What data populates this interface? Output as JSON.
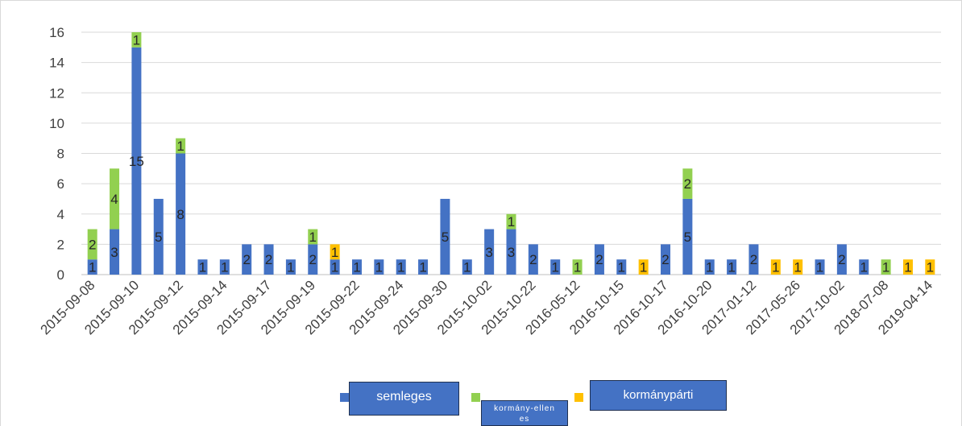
{
  "chart_data": {
    "type": "stacked_bar",
    "categories": [
      "2015-09-08",
      null,
      "2015-09-10",
      null,
      "2015-09-12",
      null,
      "2015-09-14",
      null,
      "2015-09-17",
      null,
      "2015-09-19",
      null,
      "2015-09-22",
      null,
      "2015-09-24",
      null,
      "2015-09-30",
      null,
      "2015-10-02",
      null,
      "2015-10-22",
      null,
      "2016-05-12",
      null,
      "2016-10-15",
      null,
      "2016-10-17",
      null,
      "2016-10-20",
      null,
      "2017-01-12",
      null,
      "2017-05-26",
      null,
      "2017-10-02",
      null,
      "2018-07-08",
      null,
      "2019-04-14"
    ],
    "series": [
      {
        "name": "semleges",
        "color": "#4472c4",
        "values": [
          1,
          3,
          15,
          5,
          8,
          1,
          1,
          2,
          2,
          1,
          2,
          1,
          1,
          1,
          1,
          1,
          5,
          1,
          3,
          3,
          2,
          1,
          null,
          2,
          1,
          null,
          2,
          5,
          1,
          1,
          2,
          null,
          null,
          1,
          2,
          1,
          null,
          null,
          null
        ]
      },
      {
        "name": "kormány-ellenes",
        "color": "#92d050",
        "values": [
          2,
          4,
          1,
          null,
          1,
          null,
          null,
          null,
          null,
          null,
          1,
          null,
          null,
          null,
          null,
          null,
          null,
          null,
          null,
          1,
          null,
          null,
          1,
          null,
          null,
          null,
          null,
          2,
          null,
          null,
          null,
          null,
          null,
          null,
          null,
          null,
          1,
          null,
          null
        ]
      },
      {
        "name": "kormánypárti",
        "color": "#ffc000",
        "values": [
          null,
          null,
          null,
          null,
          null,
          null,
          null,
          null,
          null,
          null,
          null,
          1,
          null,
          null,
          null,
          null,
          null,
          null,
          null,
          null,
          null,
          null,
          null,
          null,
          null,
          1,
          null,
          null,
          null,
          null,
          null,
          1,
          1,
          null,
          null,
          null,
          null,
          1,
          1
        ]
      }
    ],
    "ylim": [
      0,
      16
    ],
    "yticks": [
      0,
      2,
      4,
      6,
      8,
      10,
      12,
      14,
      16
    ],
    "grid": true
  }
}
